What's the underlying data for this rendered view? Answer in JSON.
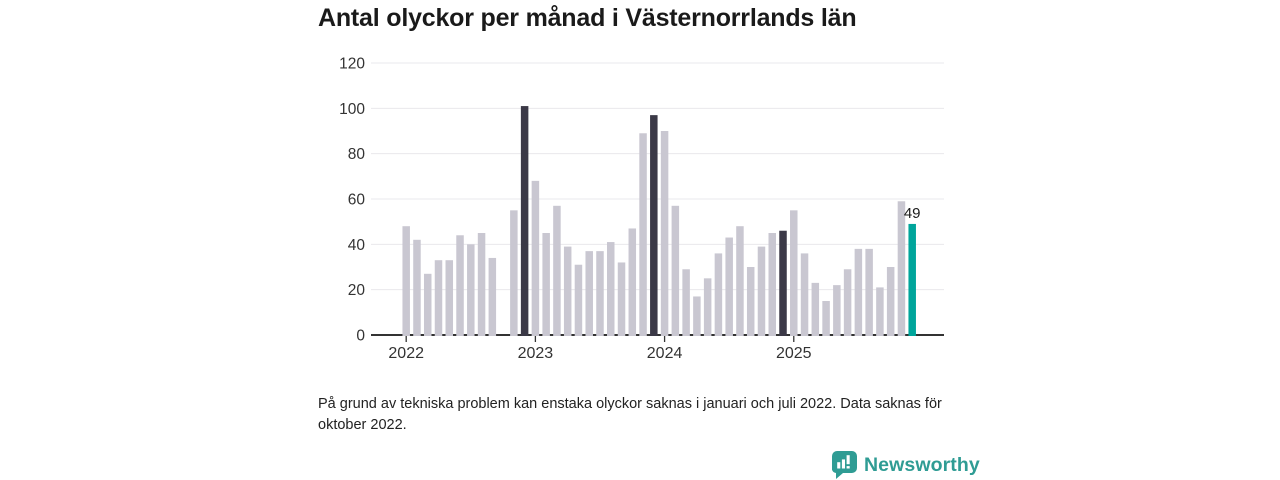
{
  "title": "Antal olyckor per månad i Västernorrlands län",
  "footnote": "På grund av tekniska problem kan enstaka olyckor saknas i januari och juli 2022. Data saknas för oktober 2022.",
  "branding": {
    "name": "Newsworthy"
  },
  "colors": {
    "bar_default": "#c9c7d1",
    "bar_dark": "#3b3947",
    "bar_highlight": "#00a59b",
    "gridline": "#e9e8ec",
    "axis_line": "#333333",
    "axis_text": "#333333",
    "annotation_text": "#1a1a1a",
    "logo": "#2f9c94"
  },
  "chart_data": {
    "type": "bar",
    "title": "Antal olyckor per månad i Västernorrlands län",
    "xlabel": "",
    "ylabel": "",
    "ylim": [
      0,
      120
    ],
    "yticks": [
      0,
      20,
      40,
      60,
      80,
      100,
      120
    ],
    "year_ticks": [
      "2022",
      "2023",
      "2024",
      "2025"
    ],
    "grid": true,
    "legend": "none",
    "missing_months": [
      "2022-10"
    ],
    "annotation": {
      "text": "49",
      "month": "2025-12"
    },
    "months": [
      {
        "m": "2022-01",
        "v": 48,
        "style": "default"
      },
      {
        "m": "2022-02",
        "v": 42,
        "style": "default"
      },
      {
        "m": "2022-03",
        "v": 27,
        "style": "default"
      },
      {
        "m": "2022-04",
        "v": 33,
        "style": "default"
      },
      {
        "m": "2022-05",
        "v": 33,
        "style": "default"
      },
      {
        "m": "2022-06",
        "v": 44,
        "style": "default"
      },
      {
        "m": "2022-07",
        "v": 40,
        "style": "default"
      },
      {
        "m": "2022-08",
        "v": 45,
        "style": "default"
      },
      {
        "m": "2022-09",
        "v": 34,
        "style": "default"
      },
      {
        "m": "2022-10",
        "v": null,
        "style": "default"
      },
      {
        "m": "2022-11",
        "v": 55,
        "style": "default"
      },
      {
        "m": "2022-12",
        "v": 101,
        "style": "dark"
      },
      {
        "m": "2023-01",
        "v": 68,
        "style": "default"
      },
      {
        "m": "2023-02",
        "v": 45,
        "style": "default"
      },
      {
        "m": "2023-03",
        "v": 57,
        "style": "default"
      },
      {
        "m": "2023-04",
        "v": 39,
        "style": "default"
      },
      {
        "m": "2023-05",
        "v": 31,
        "style": "default"
      },
      {
        "m": "2023-06",
        "v": 37,
        "style": "default"
      },
      {
        "m": "2023-07",
        "v": 37,
        "style": "default"
      },
      {
        "m": "2023-08",
        "v": 41,
        "style": "default"
      },
      {
        "m": "2023-09",
        "v": 32,
        "style": "default"
      },
      {
        "m": "2023-10",
        "v": 47,
        "style": "default"
      },
      {
        "m": "2023-11",
        "v": 89,
        "style": "default"
      },
      {
        "m": "2023-12",
        "v": 97,
        "style": "dark"
      },
      {
        "m": "2024-01",
        "v": 90,
        "style": "default"
      },
      {
        "m": "2024-02",
        "v": 57,
        "style": "default"
      },
      {
        "m": "2024-03",
        "v": 29,
        "style": "default"
      },
      {
        "m": "2024-04",
        "v": 17,
        "style": "default"
      },
      {
        "m": "2024-05",
        "v": 25,
        "style": "default"
      },
      {
        "m": "2024-06",
        "v": 36,
        "style": "default"
      },
      {
        "m": "2024-07",
        "v": 43,
        "style": "default"
      },
      {
        "m": "2024-08",
        "v": 48,
        "style": "default"
      },
      {
        "m": "2024-09",
        "v": 30,
        "style": "default"
      },
      {
        "m": "2024-10",
        "v": 39,
        "style": "default"
      },
      {
        "m": "2024-11",
        "v": 45,
        "style": "default"
      },
      {
        "m": "2024-12",
        "v": 46,
        "style": "dark"
      },
      {
        "m": "2025-01",
        "v": 55,
        "style": "default"
      },
      {
        "m": "2025-02",
        "v": 36,
        "style": "default"
      },
      {
        "m": "2025-03",
        "v": 23,
        "style": "default"
      },
      {
        "m": "2025-04",
        "v": 15,
        "style": "default"
      },
      {
        "m": "2025-05",
        "v": 22,
        "style": "default"
      },
      {
        "m": "2025-06",
        "v": 29,
        "style": "default"
      },
      {
        "m": "2025-07",
        "v": 38,
        "style": "default"
      },
      {
        "m": "2025-08",
        "v": 38,
        "style": "default"
      },
      {
        "m": "2025-09",
        "v": 21,
        "style": "default"
      },
      {
        "m": "2025-10",
        "v": 30,
        "style": "default"
      },
      {
        "m": "2025-11",
        "v": 59,
        "style": "default"
      },
      {
        "m": "2025-12",
        "v": 49,
        "style": "highlight"
      }
    ]
  }
}
